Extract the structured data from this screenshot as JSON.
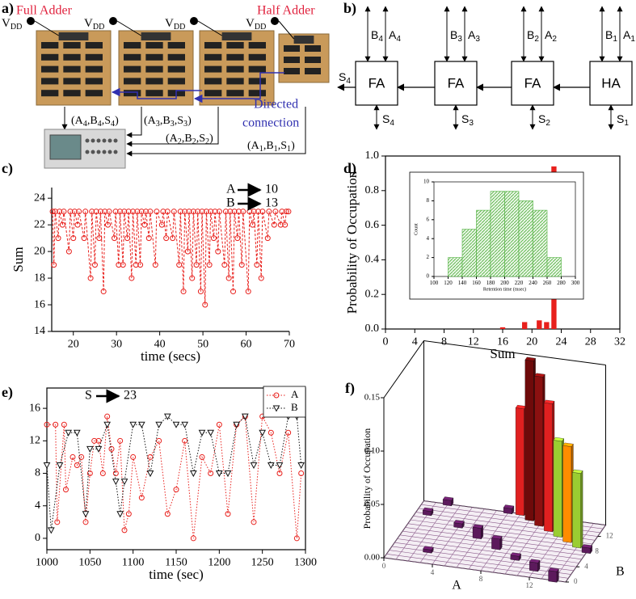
{
  "panel_labels": [
    "a)",
    "b)",
    "c)",
    "d)",
    "e)",
    "f)"
  ],
  "diagram_a": {
    "left_title": "Full Adder",
    "right_title": "Half Adder",
    "supply": {
      "text": "V",
      "sub": "DD"
    },
    "outputs": [
      "(A4,B4,S4)",
      "(A3,B3,S3)",
      "(A2,B2,S2)",
      "(A1,B1,S1)"
    ],
    "connection": [
      "Directed",
      "connection"
    ]
  },
  "diagram_b": {
    "blocks": [
      "FA",
      "FA",
      "FA",
      "HA"
    ],
    "inputs": [
      [
        "B4",
        "A4"
      ],
      [
        "B3",
        "A3"
      ],
      [
        "B2",
        "A2"
      ],
      [
        "B1",
        "A1"
      ]
    ],
    "sums": [
      "S4",
      "S3",
      "S2",
      "S1"
    ],
    "carry_out": "S4"
  },
  "chart_data": [
    {
      "type": "line",
      "xlabel": "time (secs)",
      "ylabel": "Sum",
      "color": "#e8201c",
      "line_style": "dashed",
      "marker": "circle",
      "annotations": [
        {
          "label": "A",
          "value": "10"
        },
        {
          "label": "B",
          "value": "13"
        }
      ],
      "x": [
        15.2,
        15.5,
        15.8,
        16.5,
        16.8,
        17.5,
        17.8,
        19,
        19.3,
        20,
        20.3,
        21,
        21.3,
        22.5,
        22.8,
        24,
        24.3,
        25,
        25.3,
        26,
        26.3,
        27,
        27.3,
        28,
        28.3,
        29.5,
        29.8,
        30.5,
        30.8,
        31.5,
        31.8,
        32.5,
        32.8,
        33.5,
        33.8,
        34.5,
        34.8,
        35.5,
        35.8,
        36.5,
        36.8,
        37.5,
        37.8,
        39,
        39.3,
        40.5,
        40.8,
        41.5,
        41.8,
        43,
        43.3,
        44.5,
        44.8,
        45.5,
        45.8,
        46.5,
        46.8,
        47.5,
        47.8,
        48.5,
        48.8,
        49.5,
        49.8,
        50.5,
        50.8,
        51.5,
        51.8,
        52.5,
        52.8,
        53.5,
        53.8,
        55,
        55.3,
        56,
        56.3,
        57,
        57.3,
        58,
        58.3,
        59,
        59.3,
        60.5,
        60.8,
        61.5,
        61.8,
        62.5,
        62.8,
        63.5,
        63.8,
        65,
        65.3,
        66.5,
        66.8,
        68,
        68.3,
        69,
        69.3,
        69.8
      ],
      "values": [
        23,
        19,
        23,
        21,
        23,
        22,
        23,
        20,
        23,
        21,
        23,
        22,
        23,
        21,
        23,
        18,
        23,
        19,
        23,
        21,
        23,
        17,
        23,
        22,
        23,
        21,
        23,
        19,
        23,
        19,
        23,
        21,
        23,
        18,
        23,
        19,
        23,
        19,
        23,
        22,
        23,
        21,
        23,
        19,
        23,
        22,
        23,
        21,
        23,
        21,
        23,
        19,
        23,
        17,
        23,
        20,
        23,
        18,
        23,
        19,
        23,
        17,
        23,
        16,
        23,
        19,
        23,
        21,
        23,
        20,
        23,
        19,
        23,
        18,
        23,
        17,
        23,
        21,
        23,
        19,
        23,
        17,
        23,
        22,
        23,
        19,
        23,
        18,
        23,
        21,
        23,
        22,
        23,
        22,
        23,
        22,
        23,
        23
      ],
      "xlim": [
        15,
        70
      ],
      "xticks": [
        20,
        30,
        40,
        50,
        60,
        70
      ],
      "ylim": [
        14,
        24.8
      ],
      "yticks": [
        14,
        16,
        18,
        20,
        22,
        24
      ]
    },
    {
      "type": "bar",
      "xlabel": "Sum",
      "ylabel": "Probability of Occupation",
      "color": "#e8201c",
      "x": [
        16,
        19,
        21,
        22,
        23
      ],
      "values": [
        0.01,
        0.04,
        0.05,
        0.04,
        0.94
      ],
      "xlim": [
        0,
        32
      ],
      "xticks": [
        0,
        4,
        8,
        12,
        16,
        20,
        24,
        28,
        32
      ],
      "ylim": [
        0,
        1.0
      ],
      "yticks": [
        {
          "value": 0,
          "label": "0.0"
        },
        {
          "value": 0.2,
          "label": "0.2"
        },
        {
          "value": 0.4,
          "label": "0.4"
        },
        {
          "value": 0.6,
          "label": "0.6"
        },
        {
          "value": 0.8,
          "label": "0.8"
        },
        {
          "value": 1,
          "label": "1.0"
        }
      ]
    },
    {
      "type": "histogram",
      "xlabel": "Retention time (msec)",
      "ylabel": "Count",
      "color": "#4caf3a",
      "bins": [
        120,
        140,
        160,
        180,
        200,
        220,
        240,
        260,
        280
      ],
      "values": [
        2,
        5,
        7,
        9,
        9,
        8,
        7,
        2
      ],
      "xlim": [
        100,
        300
      ],
      "xticks": [
        100,
        120,
        140,
        160,
        180,
        200,
        220,
        240,
        260,
        280,
        300
      ],
      "ylim": [
        0,
        10
      ],
      "yticks": [
        0,
        2,
        4,
        6,
        8,
        10
      ]
    },
    {
      "type": "line",
      "xlabel": "time (sec)",
      "line_style": "dotted",
      "legend": "top-right",
      "annotations": [
        {
          "label": "S",
          "value": "23"
        }
      ],
      "series": [
        {
          "name": "A",
          "color": "#e8201c",
          "marker": "circle",
          "x": [
            1000,
            1010,
            1012,
            1020,
            1022,
            1030,
            1035,
            1040,
            1045,
            1050,
            1055,
            1060,
            1065,
            1070,
            1075,
            1080,
            1085,
            1090,
            1095,
            1100,
            1110,
            1120,
            1130,
            1140,
            1150,
            1160,
            1170,
            1180,
            1190,
            1200,
            1210,
            1220,
            1230,
            1240,
            1250,
            1260,
            1270,
            1280,
            1290,
            1295
          ],
          "values": [
            14,
            14,
            2,
            14,
            6,
            10,
            9,
            10,
            2,
            8,
            12,
            12,
            8,
            15,
            11,
            8,
            12,
            1,
            3,
            10,
            5,
            10,
            12,
            3,
            6,
            12,
            0,
            10,
            8,
            14,
            3,
            14,
            15,
            2,
            15,
            13,
            8,
            13,
            0,
            8
          ]
        },
        {
          "name": "B",
          "color": "#111111",
          "marker": "triangle",
          "x": [
            1000,
            1005,
            1015,
            1025,
            1035,
            1045,
            1050,
            1060,
            1070,
            1080,
            1085,
            1090,
            1100,
            1110,
            1120,
            1130,
            1140,
            1150,
            1160,
            1170,
            1180,
            1190,
            1200,
            1210,
            1220,
            1230,
            1240,
            1250,
            1260,
            1270,
            1280,
            1290,
            1295
          ],
          "values": [
            9,
            1,
            9,
            13,
            13,
            3,
            11,
            11,
            14,
            7,
            3,
            7,
            14,
            14,
            8,
            14,
            15,
            14,
            14,
            8,
            13,
            13,
            8,
            8,
            14,
            15,
            9,
            13,
            9,
            9,
            15,
            15,
            9
          ]
        }
      ],
      "xlim": [
        1000,
        1300
      ],
      "xticks": [
        1000,
        1050,
        1100,
        1150,
        1200,
        1250,
        1300
      ],
      "ylim": [
        -1.4,
        18.5
      ],
      "yticks": [
        0,
        4,
        8,
        12,
        16
      ]
    },
    {
      "type": "bar3d",
      "xlabel": "A",
      "ylabel": "B",
      "zlabel": "Probability of Occupation",
      "x": [
        8,
        9,
        10,
        11,
        12,
        13,
        14,
        15,
        7,
        2,
        4,
        6,
        8,
        10,
        12,
        14,
        3,
        1
      ],
      "y": [
        15,
        14,
        13,
        12,
        11,
        10,
        9,
        8,
        15,
        15,
        10,
        8,
        6,
        4,
        2,
        0,
        3,
        12
      ],
      "values": [
        0.1,
        0.15,
        0.14,
        0.12,
        0.09,
        0.09,
        0.07,
        0.005,
        0.005,
        0.005,
        0.004,
        0.01,
        0.01,
        0.004,
        0.008,
        0.01,
        0.003,
        0.004
      ],
      "colors": [
        "#e02020",
        "#6e0a0a",
        "#8b1010",
        "#e02020",
        "#9acd32",
        "#ff8c00",
        "#9acd32",
        "#5c1a5c",
        "#5c1a5c",
        "#5c1a5c",
        "#5c1a5c",
        "#5c1a5c",
        "#5c1a5c",
        "#5c1a5c",
        "#5c1a5c",
        "#5c1a5c",
        "#5c1a5c",
        "#5c1a5c"
      ],
      "xlim": [
        0,
        15
      ],
      "ylim": [
        0,
        15
      ],
      "zlim": [
        0,
        0.15
      ],
      "xticks": [
        0,
        4,
        8,
        12
      ],
      "yticks": [
        0,
        4,
        8,
        12
      ],
      "zticks": [
        {
          "value": 0,
          "label": "0.00"
        },
        {
          "value": 0.05,
          "label": "0.05"
        },
        {
          "value": 0.1,
          "label": "0.10"
        },
        {
          "value": 0.15,
          "label": "0.15"
        }
      ]
    }
  ]
}
